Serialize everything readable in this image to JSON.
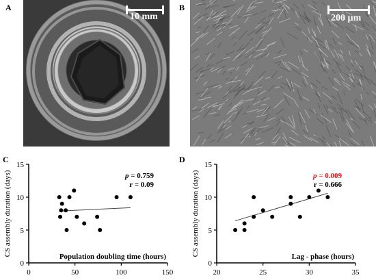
{
  "panels": {
    "a": {
      "letter": "A",
      "scale_label": "10 mm"
    },
    "b": {
      "letter": "B",
      "scale_label": "200 µm"
    },
    "c": {
      "letter": "C"
    },
    "d": {
      "letter": "D"
    }
  },
  "chart_data": [
    {
      "type": "scatter",
      "title": "",
      "xlabel": "Population doubling time (hours)",
      "ylabel": "CS assembly duration (days)",
      "xlim": [
        0,
        150
      ],
      "ylim": [
        0,
        15
      ],
      "xticks": [
        "0",
        "50",
        "100",
        "150"
      ],
      "yticks": [
        "0",
        "5",
        "10",
        "15"
      ],
      "annotations": [
        {
          "label": "p",
          "value": "= 0.759",
          "color": "#000000"
        },
        {
          "label": "r",
          "value": "= 0.09",
          "color": "#000000"
        }
      ],
      "points": [
        {
          "x": 33,
          "y": 10
        },
        {
          "x": 34,
          "y": 7
        },
        {
          "x": 35,
          "y": 8
        },
        {
          "x": 36,
          "y": 9
        },
        {
          "x": 40,
          "y": 8
        },
        {
          "x": 41,
          "y": 5
        },
        {
          "x": 44,
          "y": 10
        },
        {
          "x": 49,
          "y": 11
        },
        {
          "x": 52,
          "y": 7
        },
        {
          "x": 60,
          "y": 6
        },
        {
          "x": 74,
          "y": 7
        },
        {
          "x": 77,
          "y": 5
        },
        {
          "x": 95,
          "y": 10
        },
        {
          "x": 110,
          "y": 10
        }
      ],
      "fit": {
        "x": [
          35,
          110
        ],
        "y": [
          7.9,
          8.4
        ]
      }
    },
    {
      "type": "scatter",
      "title": "",
      "xlabel": "Lag - phase (hours)",
      "ylabel": "CS assembly duration (days)",
      "xlim": [
        20,
        35
      ],
      "ylim": [
        0,
        15
      ],
      "xticks": [
        "20",
        "25",
        "30",
        "35"
      ],
      "yticks": [
        "0",
        "5",
        "10",
        "15"
      ],
      "annotations": [
        {
          "label": "p",
          "value": "= 0.009",
          "color": "#e4181c"
        },
        {
          "label": "r",
          "value": "= 0.666",
          "color": "#000000"
        }
      ],
      "points": [
        {
          "x": 22,
          "y": 5
        },
        {
          "x": 23,
          "y": 5
        },
        {
          "x": 23,
          "y": 6
        },
        {
          "x": 24,
          "y": 7
        },
        {
          "x": 24,
          "y": 10
        },
        {
          "x": 25,
          "y": 8
        },
        {
          "x": 26,
          "y": 7
        },
        {
          "x": 28,
          "y": 9
        },
        {
          "x": 28,
          "y": 10
        },
        {
          "x": 29,
          "y": 7
        },
        {
          "x": 30,
          "y": 10
        },
        {
          "x": 31,
          "y": 11
        },
        {
          "x": 32,
          "y": 10
        }
      ],
      "fit": {
        "x": [
          22,
          32
        ],
        "y": [
          6.4,
          10.6
        ]
      }
    }
  ]
}
